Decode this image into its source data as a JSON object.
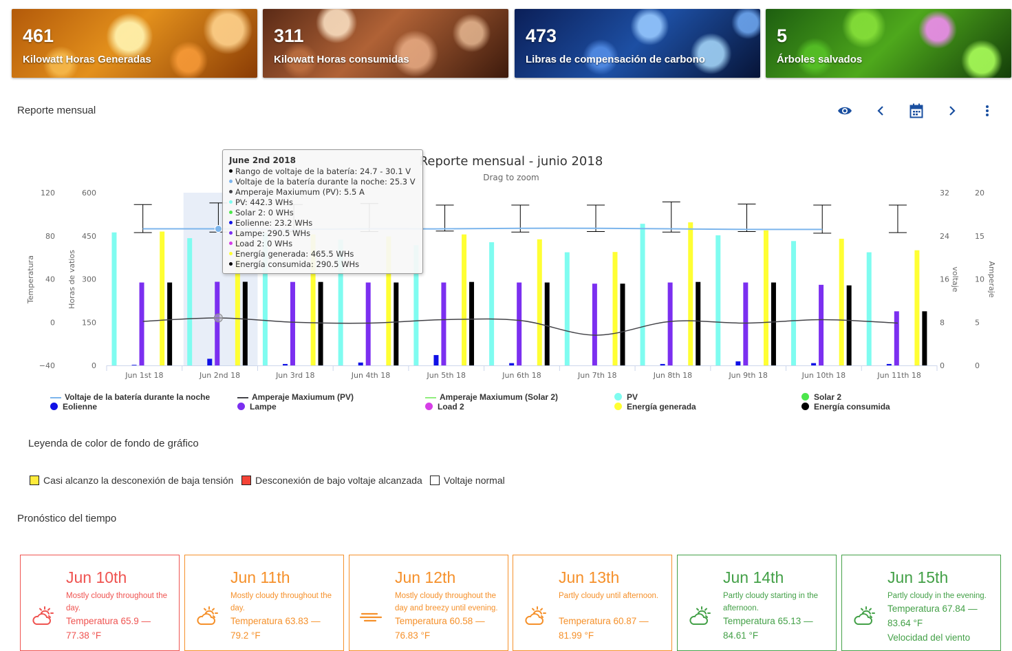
{
  "cards": [
    {
      "value": "461",
      "label": "Kilowatt Horas Generadas"
    },
    {
      "value": "311",
      "label": "Kilowatt Horas consumidas"
    },
    {
      "value": "473",
      "label": "Libras de compensación de carbono"
    },
    {
      "value": "5",
      "label": "Árboles salvados"
    }
  ],
  "report": {
    "title": "Reporte mensual",
    "toolbar": {
      "view": "eye-icon",
      "prev": "chevron-left-icon",
      "calendar": "calendar-icon",
      "next": "chevron-right-icon",
      "menu": "more-vert-icon"
    }
  },
  "chart_data": {
    "type": "bar",
    "title": "Reporte mensual - junio 2018",
    "subtitle": "Drag to zoom",
    "categories": [
      "Jun 1st 18",
      "Jun 2nd 18",
      "Jun 3rd 18",
      "Jun 4th 18",
      "Jun 5th 18",
      "Jun 6th 18",
      "Jun 7th 18",
      "Jun 8th 18",
      "Jun 9th 18",
      "Jun 10th 18",
      "Jun 11th 18"
    ],
    "axes": {
      "temperatura": {
        "label": "Temperatura",
        "min": -40,
        "max": 120,
        "ticks": [
          "120",
          "80",
          "40",
          "0",
          "−40"
        ]
      },
      "vatios": {
        "label": "Horas de vatios",
        "min": 0,
        "max": 600,
        "ticks": [
          "600",
          "450",
          "300",
          "150",
          "0"
        ]
      },
      "voltaje": {
        "label": "voltaje",
        "min": 0,
        "max": 32,
        "ticks": [
          "32",
          "24",
          "16",
          "8",
          "0"
        ]
      },
      "amperaje": {
        "label": "Amperaje",
        "min": 0,
        "max": 20,
        "ticks": [
          "20",
          "15",
          "10",
          "5",
          "0"
        ]
      }
    },
    "series": [
      {
        "name": "PV",
        "color": "#7ffcf0",
        "values": [
          462,
          442,
          460,
          437,
          418,
          428,
          393,
          492,
          452,
          432,
          393
        ]
      },
      {
        "name": "Eolienne",
        "color": "#1010e6",
        "values": [
          2,
          23,
          5,
          10,
          36,
          8,
          0,
          5,
          14,
          8,
          5
        ]
      },
      {
        "name": "Lampe",
        "color": "#7b2ff0",
        "values": [
          288,
          290.5,
          290,
          288,
          288,
          288,
          284,
          288,
          288,
          280,
          188
        ]
      },
      {
        "name": "Energía generada",
        "color": "#ffff33",
        "values": [
          465,
          465.5,
          455,
          448,
          455,
          438,
          394,
          497,
          469,
          440,
          400
        ]
      },
      {
        "name": "Energía consumida",
        "color": "#000000",
        "values": [
          288,
          290.5,
          290,
          288,
          290,
          288,
          284,
          290,
          288,
          278,
          188
        ]
      },
      {
        "name": "Solar 2",
        "color": "#4be64b",
        "values": [
          0,
          0,
          0,
          0,
          0,
          0,
          0,
          0,
          0,
          0,
          0
        ]
      },
      {
        "name": "Load 2",
        "color": "#d63ee6",
        "values": [
          0,
          0,
          0,
          0,
          0,
          0,
          0,
          0,
          0,
          0,
          0
        ]
      },
      {
        "name": "Voltaje de la batería durante la noche",
        "color": "#7cb5ec",
        "axis": "voltaje",
        "values": [
          25.3,
          25.3,
          25.2,
          25.3,
          25.3,
          25.4,
          25.4,
          25.3,
          25.2,
          25.2,
          null
        ]
      },
      {
        "name": "Amperaje Maxiumum (PV)",
        "color": "#434348",
        "axis": "amperaje",
        "values": [
          5.1,
          5.5,
          5.0,
          4.9,
          5.3,
          5.2,
          3.5,
          5.1,
          4.9,
          5.3,
          4.9
        ]
      },
      {
        "name": "Rango de voltaje de la batería",
        "type": "errorbar",
        "axis": "voltaje",
        "low": [
          24.6,
          24.7,
          24.8,
          24.8,
          24.9,
          24.7,
          24.8,
          24.7,
          24.8,
          24.5,
          24.6
        ],
        "high": [
          29.8,
          30.1,
          29.8,
          30.0,
          29.7,
          29.7,
          29.7,
          30.3,
          29.9,
          29.7,
          29.7
        ]
      }
    ],
    "legend": [
      {
        "name": "Voltaje de la batería durante la noche",
        "color": "#7cb5ec",
        "kind": "line"
      },
      {
        "name": "Amperaje Maxiumum (PV)",
        "color": "#434348",
        "kind": "line"
      },
      {
        "name": "Amperaje Maxiumum (Solar 2)",
        "color": "#90ed7d",
        "kind": "line"
      },
      {
        "name": "PV",
        "color": "#7ffcf0",
        "kind": "dot"
      },
      {
        "name": "Solar 2",
        "color": "#4be64b",
        "kind": "dot"
      },
      {
        "name": "Eolienne",
        "color": "#1010e6",
        "kind": "dot"
      },
      {
        "name": "Lampe",
        "color": "#7b2ff0",
        "kind": "dot"
      },
      {
        "name": "Load 2",
        "color": "#d63ee6",
        "kind": "dot"
      },
      {
        "name": "Energía generada",
        "color": "#ffff33",
        "kind": "dot"
      },
      {
        "name": "Energía consumida",
        "color": "#000000",
        "kind": "dot"
      }
    ],
    "tooltip": {
      "title": "June 2nd 2018",
      "rows": [
        {
          "color": "#000000",
          "text": "Rango de voltaje de la batería: 24.7 - 30.1 V"
        },
        {
          "color": "#7cb5ec",
          "text": "Voltaje de la batería durante la noche: 25.3 V"
        },
        {
          "color": "#434348",
          "text": "Amperaje Maxiumum (PV): 5.5 A"
        },
        {
          "color": "#7ffcf0",
          "text": "PV: 442.3 WHs"
        },
        {
          "color": "#4be64b",
          "text": "Solar 2: 0 WHs"
        },
        {
          "color": "#1010e6",
          "text": "Eolienne: 23.2 WHs"
        },
        {
          "color": "#7b2ff0",
          "text": "Lampe: 290.5 WHs"
        },
        {
          "color": "#d63ee6",
          "text": "Load 2: 0 WHs"
        },
        {
          "color": "#ffff33",
          "text": "Energía generada: 465.5 WHs"
        },
        {
          "color": "#000000",
          "text": "Energía consumida: 290.5 WHs"
        }
      ]
    }
  },
  "bg_legend": {
    "title": "Leyenda de color de fondo de gráfico",
    "items": [
      {
        "label": "Casi alcanzo la desconexión de baja tensión",
        "color": "#ffeb3b"
      },
      {
        "label": "Desconexión de bajo voltaje alcanzada",
        "color": "#f44336"
      },
      {
        "label": "Voltaje normal",
        "color": "#ffffff"
      }
    ]
  },
  "forecast": {
    "title": "Pronóstico del tiempo",
    "days": [
      {
        "date": "Jun 10th",
        "summary": "Mostly cloudy throughout the day.",
        "temp": "Temperatura 65.9 — 77.38 °F",
        "icon": "partly-cloudy-icon",
        "color": "#ef5350"
      },
      {
        "date": "Jun 11th",
        "summary": "Mostly cloudy throughout the day.",
        "temp": "Temperatura 63.83 — 79.2 °F",
        "icon": "partly-cloudy-icon",
        "color": "#f5902a"
      },
      {
        "date": "Jun 12th",
        "summary": "Mostly cloudy throughout the day and breezy until evening.",
        "temp": "Temperatura 60.58 — 76.83 °F",
        "icon": "wind-icon",
        "color": "#f5902a"
      },
      {
        "date": "Jun 13th",
        "summary": "Partly cloudy until afternoon.",
        "temp": "Temperatura 60.87 — 81.99 °F",
        "icon": "partly-cloudy-icon",
        "color": "#f5902a"
      },
      {
        "date": "Jun 14th",
        "summary": "Partly cloudy starting in the afternoon.",
        "temp": "Temperatura 65.13 — 84.61 °F",
        "icon": "partly-cloudy-icon",
        "color": "#43a047"
      },
      {
        "date": "Jun 15th",
        "summary": "Partly cloudy in the evening.",
        "temp": "Temperatura 67.84 — 83.64 °F",
        "extra": "Velocidad del viento",
        "icon": "partly-cloudy-icon",
        "color": "#43a047"
      }
    ]
  }
}
